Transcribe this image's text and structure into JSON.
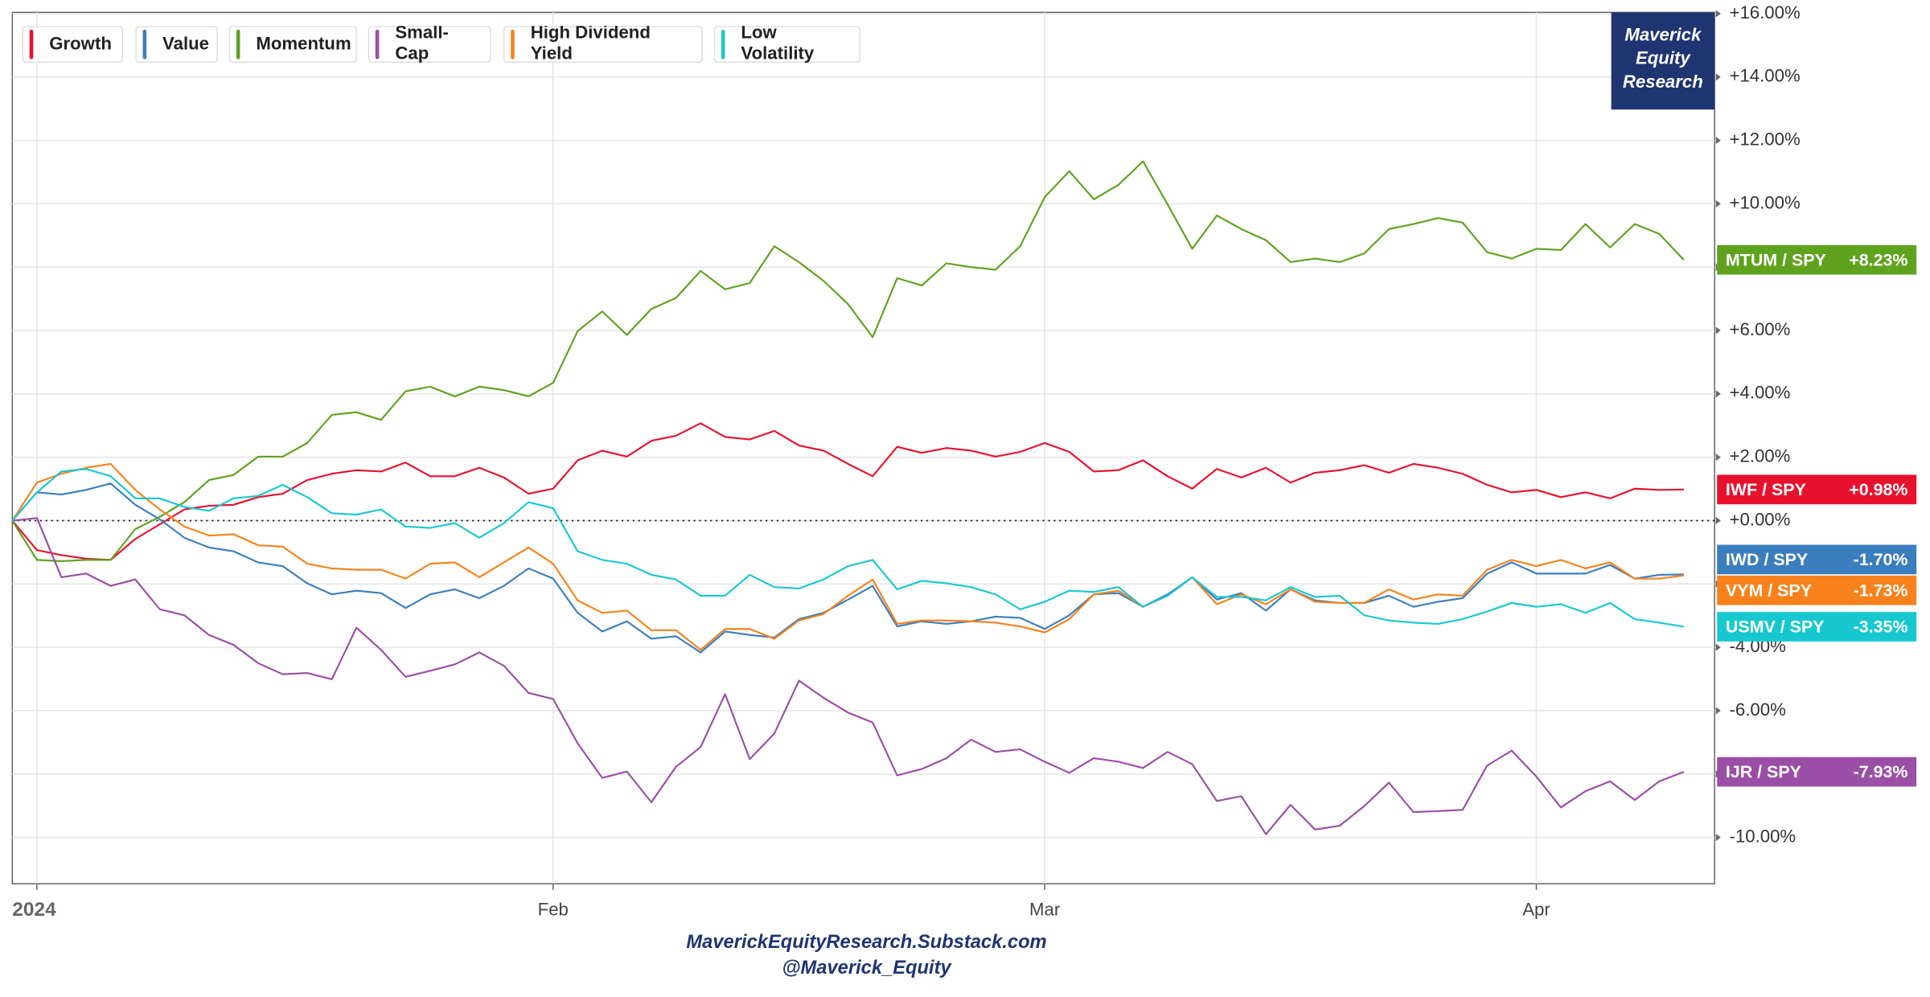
{
  "chart_data": {
    "type": "line",
    "brand": "Maverick Equity Research",
    "footer": [
      "MaverickEquityResearch.Substack.com",
      "@Maverick_Equity"
    ],
    "categories": [
      null,
      "2024",
      null,
      null,
      null,
      null,
      null,
      null,
      null,
      null,
      null,
      null,
      null,
      null,
      null,
      null,
      null,
      null,
      null,
      null,
      null,
      null,
      "Feb",
      null,
      null,
      null,
      null,
      null,
      null,
      null,
      null,
      null,
      null,
      null,
      null,
      null,
      null,
      null,
      null,
      null,
      null,
      null,
      "Mar",
      null,
      null,
      null,
      null,
      null,
      null,
      null,
      null,
      null,
      null,
      null,
      null,
      null,
      null,
      null,
      null,
      null,
      null,
      null,
      "Apr",
      null,
      null,
      null,
      null,
      null,
      null
    ],
    "ylim": [
      -11.46,
      16.04
    ],
    "yticks": [
      {
        "value": -10,
        "label": "-10.00%"
      },
      {
        "value": -8,
        "label": "-8.00%"
      },
      {
        "value": -6,
        "label": "-6.00%"
      },
      {
        "value": -4,
        "label": "-4.00%"
      },
      {
        "value": -2,
        "label": "-2.00%"
      },
      {
        "value": 0,
        "label": "+0.00%"
      },
      {
        "value": 2,
        "label": "+2.00%"
      },
      {
        "value": 4,
        "label": "+4.00%"
      },
      {
        "value": 6,
        "label": "+6.00%"
      },
      {
        "value": 8,
        "label": "+8.00%"
      },
      {
        "value": 10,
        "label": "+10.00%"
      },
      {
        "value": 12,
        "label": "+12.00%"
      },
      {
        "value": 14,
        "label": "+14.00%"
      },
      {
        "value": 16,
        "label": "+16.00%"
      }
    ],
    "grid": true,
    "zero_line": true,
    "legend": "top-left",
    "series": [
      {
        "name": "Growth",
        "tag": "IWF / SPY",
        "end_label": "+0.98%",
        "color": "#e8112d",
        "values": [
          0,
          -0.93,
          -1.09,
          -1.2,
          -1.24,
          -0.58,
          -0.12,
          0.35,
          0.47,
          0.5,
          0.74,
          0.85,
          1.28,
          1.48,
          1.59,
          1.55,
          1.83,
          1.4,
          1.4,
          1.67,
          1.36,
          0.85,
          1.01,
          1.9,
          2.21,
          2.02,
          2.52,
          2.68,
          3.07,
          2.64,
          2.56,
          2.83,
          2.37,
          2.21,
          1.79,
          1.4,
          2.33,
          2.14,
          2.29,
          2.21,
          2.02,
          2.17,
          2.45,
          2.17,
          1.55,
          1.59,
          1.9,
          1.4,
          1.01,
          1.63,
          1.36,
          1.67,
          1.2,
          1.51,
          1.59,
          1.75,
          1.51,
          1.79,
          1.67,
          1.48,
          1.13,
          0.89,
          0.97,
          0.74,
          0.89,
          0.7,
          1.01,
          0.97,
          0.98
        ]
      },
      {
        "name": "Value",
        "tag": "IWD / SPY",
        "end_label": "-1.70%",
        "color": "#3a7ebf",
        "values": [
          0,
          0.89,
          0.82,
          0.97,
          1.17,
          0.5,
          0.04,
          -0.54,
          -0.85,
          -0.97,
          -1.32,
          -1.44,
          -1.98,
          -2.33,
          -2.21,
          -2.29,
          -2.76,
          -2.33,
          -2.17,
          -2.45,
          -2.06,
          -1.51,
          -1.83,
          -2.91,
          -3.5,
          -3.18,
          -3.73,
          -3.65,
          -4.16,
          -3.5,
          -3.61,
          -3.69,
          -3.11,
          -2.91,
          -2.49,
          -2.06,
          -3.34,
          -3.18,
          -3.26,
          -3.18,
          -3.03,
          -3.07,
          -3.42,
          -2.99,
          -2.33,
          -2.29,
          -2.72,
          -2.33,
          -1.79,
          -2.49,
          -2.29,
          -2.84,
          -2.17,
          -2.52,
          -2.6,
          -2.6,
          -2.37,
          -2.72,
          -2.56,
          -2.45,
          -1.67,
          -1.32,
          -1.67,
          -1.67,
          -1.67,
          -1.4,
          -1.83,
          -1.71,
          -1.7
        ]
      },
      {
        "name": "Momentum",
        "tag": "MTUM / SPY",
        "end_label": "+8.23%",
        "color": "#5fa21e",
        "values": [
          0,
          -1.24,
          -1.28,
          -1.24,
          -1.24,
          -0.27,
          0.12,
          0.58,
          1.28,
          1.44,
          2.02,
          2.02,
          2.45,
          3.34,
          3.42,
          3.18,
          4.08,
          4.23,
          3.92,
          4.23,
          4.12,
          3.92,
          4.35,
          5.98,
          6.6,
          5.86,
          6.68,
          7.03,
          7.88,
          7.3,
          7.5,
          8.66,
          8.16,
          7.57,
          6.83,
          5.79,
          7.65,
          7.42,
          8.12,
          8.0,
          7.92,
          8.66,
          10.21,
          11.03,
          10.14,
          10.6,
          11.34,
          9.98,
          8.58,
          9.63,
          9.2,
          8.85,
          8.16,
          8.27,
          8.16,
          8.43,
          9.2,
          9.36,
          9.55,
          9.4,
          8.47,
          8.27,
          8.58,
          8.54,
          9.36,
          8.62,
          9.36,
          9.05,
          8.23
        ]
      },
      {
        "name": "Small-Cap",
        "tag": "IJR / SPY",
        "end_label": "-7.93%",
        "color": "#9b4ea6",
        "values": [
          0,
          0.08,
          -1.79,
          -1.67,
          -2.06,
          -1.86,
          -2.8,
          -2.99,
          -3.61,
          -3.92,
          -4.5,
          -4.85,
          -4.81,
          -5.01,
          -3.38,
          -4.08,
          -4.93,
          -4.74,
          -4.54,
          -4.16,
          -4.58,
          -5.44,
          -5.63,
          -7.03,
          -8.12,
          -7.92,
          -8.89,
          -7.77,
          -7.15,
          -5.48,
          -7.53,
          -6.72,
          -5.05,
          -5.59,
          -6.06,
          -6.37,
          -8.04,
          -7.84,
          -7.5,
          -6.91,
          -7.3,
          -7.22,
          -7.61,
          -7.96,
          -7.5,
          -7.61,
          -7.81,
          -7.3,
          -7.69,
          -8.85,
          -8.7,
          -9.9,
          -8.97,
          -9.75,
          -9.63,
          -9.01,
          -8.27,
          -9.2,
          -9.17,
          -9.13,
          -7.73,
          -7.26,
          -8.08,
          -9.05,
          -8.54,
          -8.23,
          -8.82,
          -8.23,
          -7.93
        ]
      },
      {
        "name": "High Dividend Yield",
        "tag": "VYM / SPY",
        "end_label": "-1.73%",
        "color": "#f7821b",
        "values": [
          0,
          1.2,
          1.48,
          1.67,
          1.79,
          0.97,
          0.35,
          -0.19,
          -0.47,
          -0.43,
          -0.78,
          -0.82,
          -1.36,
          -1.51,
          -1.55,
          -1.55,
          -1.83,
          -1.36,
          -1.32,
          -1.79,
          -1.32,
          -0.85,
          -1.36,
          -2.52,
          -2.91,
          -2.84,
          -3.46,
          -3.46,
          -4.08,
          -3.42,
          -3.42,
          -3.73,
          -3.15,
          -2.95,
          -2.37,
          -1.86,
          -3.26,
          -3.15,
          -3.15,
          -3.18,
          -3.22,
          -3.34,
          -3.53,
          -3.11,
          -2.33,
          -2.21,
          -2.72,
          -2.37,
          -1.79,
          -2.64,
          -2.33,
          -2.64,
          -2.17,
          -2.56,
          -2.6,
          -2.6,
          -2.17,
          -2.49,
          -2.33,
          -2.37,
          -1.55,
          -1.24,
          -1.44,
          -1.24,
          -1.51,
          -1.32,
          -1.83,
          -1.83,
          -1.73
        ]
      },
      {
        "name": "Low Volatility",
        "tag": "USMV / SPY",
        "end_label": "-3.35%",
        "color": "#17c8d1",
        "values": [
          0,
          0.89,
          1.55,
          1.63,
          1.4,
          0.7,
          0.7,
          0.43,
          0.31,
          0.7,
          0.78,
          1.13,
          0.74,
          0.23,
          0.19,
          0.35,
          -0.19,
          -0.23,
          -0.08,
          -0.54,
          -0.08,
          0.58,
          0.39,
          -0.97,
          -1.24,
          -1.36,
          -1.71,
          -1.86,
          -2.37,
          -2.37,
          -1.71,
          -2.1,
          -2.14,
          -1.86,
          -1.44,
          -1.24,
          -2.17,
          -1.9,
          -1.98,
          -2.1,
          -2.33,
          -2.8,
          -2.56,
          -2.21,
          -2.25,
          -2.1,
          -2.72,
          -2.37,
          -1.79,
          -2.41,
          -2.41,
          -2.52,
          -2.1,
          -2.41,
          -2.37,
          -2.99,
          -3.15,
          -3.22,
          -3.26,
          -3.11,
          -2.87,
          -2.6,
          -2.72,
          -2.64,
          -2.91,
          -2.6,
          -3.11,
          -3.22,
          -3.35
        ]
      }
    ]
  }
}
